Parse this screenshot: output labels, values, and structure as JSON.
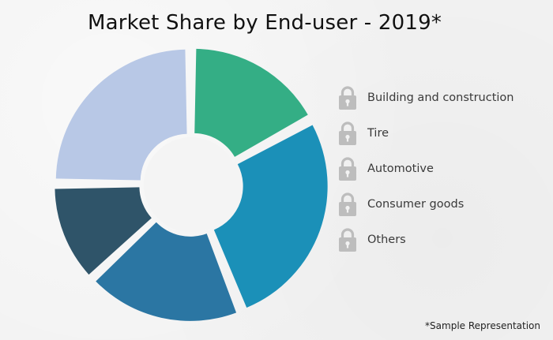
{
  "chart_data": {
    "type": "pie",
    "title": "Market Share by End-user - 2019*",
    "categories": [
      "Building and construction",
      "Tire",
      "Automotive",
      "Consumer goods",
      "Others"
    ],
    "slices": [
      {
        "label": "Building and construction",
        "value": 17,
        "color": "#34ae85"
      },
      {
        "label": "Tire",
        "value": 27,
        "color": "#1b90b8"
      },
      {
        "label": "Automotive",
        "value": 19,
        "color": "#2b76a3"
      },
      {
        "label": "Consumer goods",
        "value": 12,
        "color": "#2f5469"
      },
      {
        "label": "Others",
        "value": 25,
        "color": "#b8c8e6"
      }
    ],
    "legend_position": "right",
    "legend_icon": "lock-icon",
    "footnote": "*Sample Representation"
  }
}
